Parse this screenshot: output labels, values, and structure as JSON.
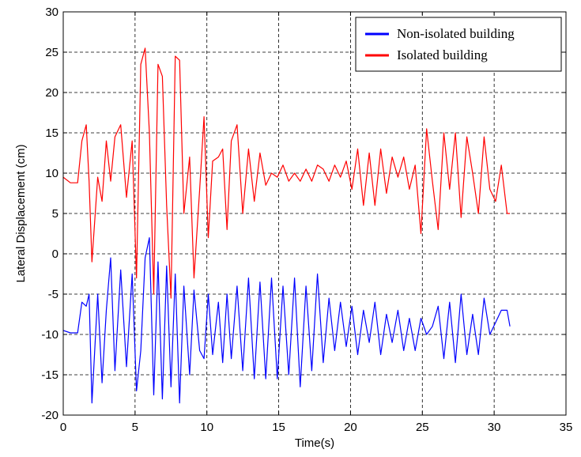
{
  "chart_data": {
    "type": "line",
    "xlabel": "Time(s)",
    "ylabel": "Lateral Displacement (cm)",
    "xlim": [
      0,
      35
    ],
    "ylim": [
      -20,
      30
    ],
    "xticks": [
      "0",
      "5",
      "10",
      "15",
      "20",
      "25",
      "30",
      "35"
    ],
    "yticks": [
      "-20",
      "-15",
      "-10",
      "-5",
      "0",
      "5",
      "10",
      "15",
      "20",
      "25",
      "30"
    ],
    "grid": true,
    "grid_style": "dashed",
    "legend_position": "top-right",
    "series": [
      {
        "name": "Non-isolated building",
        "color": "#0000ff",
        "x": [
          0,
          0.5,
          1.0,
          1.3,
          1.6,
          1.8,
          2.0,
          2.4,
          2.7,
          3.0,
          3.3,
          3.6,
          4.0,
          4.4,
          4.8,
          5.1,
          5.4,
          5.7,
          6.0,
          6.3,
          6.6,
          6.9,
          7.2,
          7.5,
          7.8,
          8.1,
          8.4,
          8.8,
          9.1,
          9.5,
          9.8,
          10.1,
          10.4,
          10.8,
          11.1,
          11.4,
          11.7,
          12.1,
          12.5,
          12.9,
          13.3,
          13.7,
          14.1,
          14.5,
          14.9,
          15.3,
          15.7,
          16.1,
          16.5,
          16.9,
          17.3,
          17.7,
          18.1,
          18.5,
          18.9,
          19.3,
          19.7,
          20.1,
          20.5,
          20.9,
          21.3,
          21.7,
          22.1,
          22.5,
          22.9,
          23.3,
          23.7,
          24.1,
          24.5,
          24.9,
          25.3,
          25.7,
          26.1,
          26.5,
          26.9,
          27.3,
          27.7,
          28.1,
          28.5,
          28.9,
          29.3,
          29.7,
          30.1,
          30.5,
          30.9,
          31.1
        ],
        "y": [
          -9.5,
          -9.8,
          -9.8,
          -6.0,
          -6.5,
          -5.0,
          -18.5,
          -5.0,
          -16.0,
          -7.0,
          -0.5,
          -14.5,
          -2.0,
          -14.0,
          -2.5,
          -17.0,
          -12.0,
          -0.5,
          2.0,
          -17.5,
          -1.0,
          -18.0,
          -1.5,
          -16.5,
          -2.5,
          -18.5,
          -4.0,
          -15.0,
          -4.5,
          -12.0,
          -13.0,
          -5.0,
          -12.5,
          -6.0,
          -13.5,
          -5.0,
          -13.0,
          -4.0,
          -14.5,
          -3.0,
          -15.5,
          -3.5,
          -15.5,
          -3.0,
          -15.5,
          -4.0,
          -15.0,
          -3.0,
          -16.5,
          -4.0,
          -14.5,
          -2.5,
          -13.5,
          -5.5,
          -12.0,
          -6.0,
          -11.5,
          -6.5,
          -12.5,
          -7.0,
          -11.0,
          -6.0,
          -12.5,
          -7.5,
          -11.0,
          -7.0,
          -12.0,
          -8.0,
          -12.0,
          -8.0,
          -10.0,
          -9.0,
          -6.5,
          -13.0,
          -6.0,
          -13.5,
          -5.0,
          -12.5,
          -7.5,
          -12.5,
          -5.5,
          -10.0,
          -8.5,
          -7.0,
          -7.0,
          -9.0
        ]
      },
      {
        "name": "Isolated building",
        "color": "#ff0000",
        "x": [
          0,
          0.5,
          1.0,
          1.3,
          1.6,
          1.8,
          2.0,
          2.4,
          2.7,
          3.0,
          3.3,
          3.6,
          4.0,
          4.4,
          4.8,
          5.1,
          5.4,
          5.7,
          6.0,
          6.3,
          6.6,
          6.9,
          7.2,
          7.5,
          7.8,
          8.1,
          8.4,
          8.8,
          9.1,
          9.5,
          9.8,
          10.1,
          10.4,
          10.8,
          11.1,
          11.4,
          11.7,
          12.1,
          12.5,
          12.9,
          13.3,
          13.7,
          14.1,
          14.5,
          14.9,
          15.3,
          15.7,
          16.1,
          16.5,
          16.9,
          17.3,
          17.7,
          18.1,
          18.5,
          18.9,
          19.3,
          19.7,
          20.1,
          20.5,
          20.9,
          21.3,
          21.7,
          22.1,
          22.5,
          22.9,
          23.3,
          23.7,
          24.1,
          24.5,
          24.9,
          25.3,
          25.7,
          26.1,
          26.5,
          26.9,
          27.3,
          27.7,
          28.1,
          28.5,
          28.9,
          29.3,
          29.7,
          30.1,
          30.5,
          30.9,
          31.1
        ],
        "y": [
          9.5,
          8.8,
          8.8,
          14.0,
          16.0,
          9.0,
          -1.0,
          9.5,
          6.5,
          14.0,
          9.0,
          14.5,
          16.0,
          7.0,
          14.0,
          -3.0,
          23.5,
          25.5,
          15.0,
          -5.0,
          23.5,
          22.0,
          6.0,
          -5.5,
          24.5,
          24.0,
          5.0,
          12.0,
          -3.0,
          8.0,
          17.0,
          2.0,
          11.5,
          12.0,
          13.0,
          3.0,
          14.0,
          16.0,
          5.0,
          13.0,
          6.5,
          12.5,
          8.5,
          10.0,
          9.5,
          11.0,
          9.0,
          10.0,
          9.0,
          10.5,
          9.0,
          11.0,
          10.5,
          9.0,
          11.0,
          9.5,
          11.5,
          8.0,
          13.0,
          6.0,
          12.5,
          6.0,
          13.0,
          7.5,
          12.0,
          9.5,
          12.0,
          8.0,
          11.0,
          2.5,
          15.5,
          9.0,
          3.0,
          15.0,
          8.0,
          15.0,
          4.5,
          14.5,
          10.0,
          5.0,
          14.5,
          8.0,
          6.5,
          11.0,
          5.0,
          5.0
        ]
      }
    ]
  }
}
